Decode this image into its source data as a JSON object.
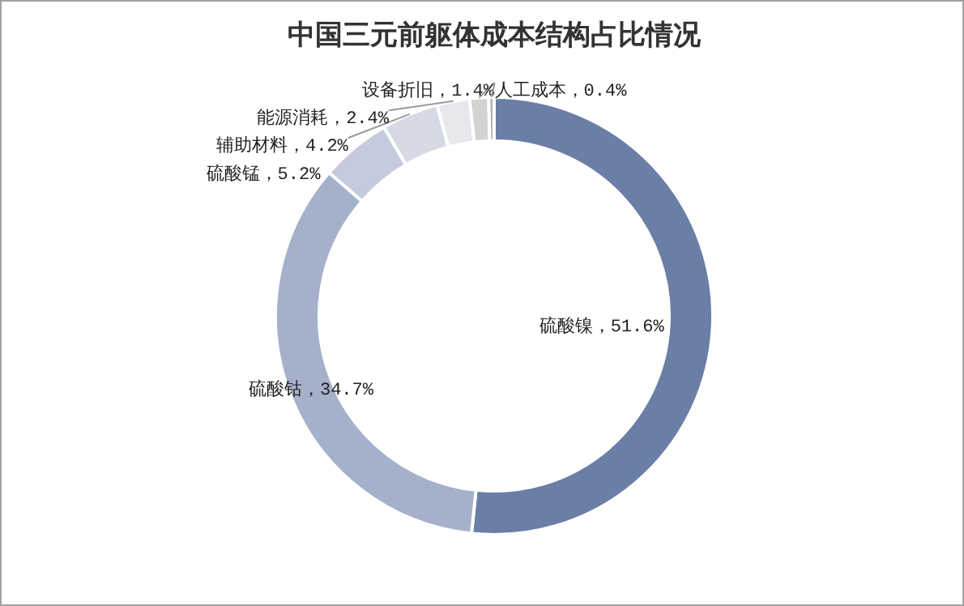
{
  "chart_data": {
    "type": "donut",
    "title": "中国三元前躯体成本结构占比情况",
    "categories": [
      "硫酸镍",
      "硫酸钴",
      "硫酸锰",
      "辅助材料",
      "能源消耗",
      "设备折旧",
      "人工成本"
    ],
    "values": [
      51.6,
      34.7,
      5.2,
      4.2,
      2.4,
      1.4,
      0.4
    ],
    "colors": [
      "#6a7ea6",
      "#a5b1cb",
      "#c3cbdc",
      "#d5dae6",
      "#e6e8ee",
      "#d3d3d3",
      "#b0b0b0"
    ],
    "value_labels": [
      "，51.6%",
      "，34.7%",
      "，5.2%",
      "，4.2%",
      "，2.4%",
      "，1.4%",
      "，0.4%"
    ]
  }
}
